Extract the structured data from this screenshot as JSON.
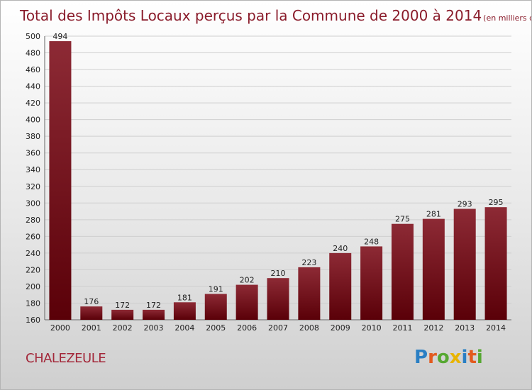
{
  "chart_data": {
    "type": "bar",
    "title": "Total des Impôts Locaux perçus par la Commune de 2000 à 2014",
    "unit": "(en milliers d'€)",
    "categories": [
      "2000",
      "2001",
      "2002",
      "2003",
      "2004",
      "2005",
      "2006",
      "2007",
      "2008",
      "2009",
      "2010",
      "2011",
      "2012",
      "2013",
      "2014"
    ],
    "values": [
      494,
      176,
      172,
      172,
      181,
      191,
      202,
      210,
      223,
      240,
      248,
      275,
      281,
      293,
      295
    ],
    "ylim": [
      160,
      500
    ],
    "yticks": [
      160,
      180,
      200,
      220,
      240,
      260,
      280,
      300,
      320,
      340,
      360,
      380,
      400,
      420,
      440,
      460,
      480,
      500
    ],
    "grid": true,
    "bar_color": "#7a1420"
  },
  "commune": "CHALEZEULE",
  "logo": {
    "letters": [
      "P",
      "r",
      "o",
      "x",
      "i",
      "t",
      "i"
    ],
    "colors": [
      "#2a7fc4",
      "#e35a1e",
      "#56a832",
      "#e8b400",
      "#2a7fc4",
      "#e35a1e",
      "#56a832"
    ]
  }
}
